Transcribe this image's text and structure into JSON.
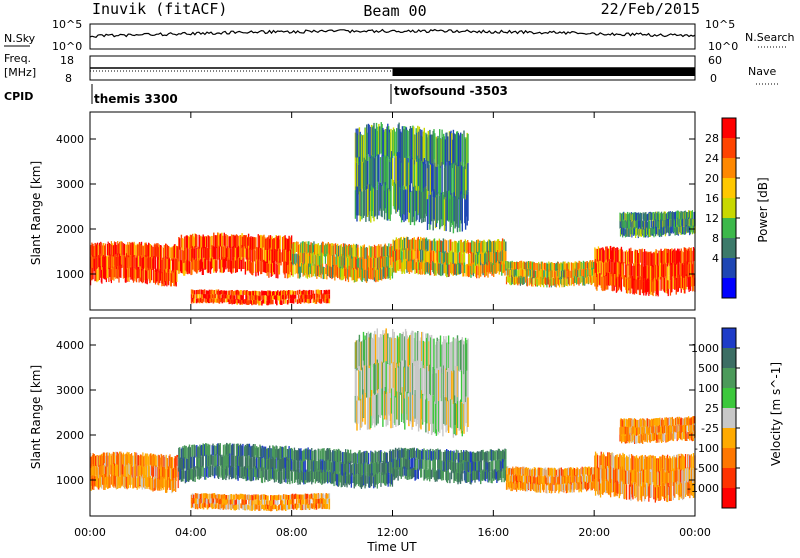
{
  "header": {
    "station": "Inuvik (fitACF)",
    "beam": "Beam 00",
    "date": "22/Feb/2015"
  },
  "noise_panel": {
    "left_label": "N.Sky",
    "left_ticks": [
      "10^5",
      "10^0"
    ],
    "right_label": "N.Search",
    "right_ticks": [
      "10^5",
      "10^0"
    ]
  },
  "freq_panel": {
    "left_label": "Freq.",
    "left_unit": "[MHz]",
    "left_ticks": [
      "18",
      "8"
    ],
    "right_label": "Nave",
    "right_ticks": [
      "60",
      "0"
    ]
  },
  "cpid": {
    "label": "CPID",
    "modes": [
      {
        "label": "themis 3300",
        "start_hour": 0
      },
      {
        "label": "twofsound -3503",
        "start_hour": 12
      }
    ]
  },
  "chart_data": [
    {
      "type": "heatmap",
      "title": "",
      "xlabel": "",
      "ylabel": "Slant Range [km]",
      "xlim": [
        0,
        24
      ],
      "ylim": [
        200,
        4600
      ],
      "xticks": [
        "00:00",
        "04:00",
        "08:00",
        "12:00",
        "16:00",
        "20:00",
        "00:00"
      ],
      "yticks": [
        1000,
        2000,
        3000,
        4000
      ],
      "colorbar": {
        "label": "Power [dB]",
        "ticks": [
          "28",
          "24",
          "20",
          "16",
          "12",
          "8",
          "4"
        ],
        "colors": [
          "#ff0000",
          "#ff4400",
          "#ff8800",
          "#ffc800",
          "#c8d800",
          "#3cb84a",
          "#3c7a6a",
          "#1e46b4",
          "#0000ff"
        ]
      },
      "bands": [
        {
          "t0": 0.0,
          "t1": 3.5,
          "r0": 700,
          "r1": 1700,
          "level": "high"
        },
        {
          "t0": 3.5,
          "t1": 8.0,
          "r0": 900,
          "r1": 1900,
          "level": "high"
        },
        {
          "t0": 4.0,
          "t1": 9.5,
          "r0": 300,
          "r1": 650,
          "level": "high"
        },
        {
          "t0": 8.0,
          "t1": 12.0,
          "r0": 800,
          "r1": 1700,
          "level": "mid"
        },
        {
          "t0": 12.0,
          "t1": 16.5,
          "r0": 900,
          "r1": 1800,
          "level": "mid"
        },
        {
          "t0": 10.5,
          "t1": 15.0,
          "r0": 1900,
          "r1": 4300,
          "level": "low"
        },
        {
          "t0": 16.5,
          "t1": 20.0,
          "r0": 700,
          "r1": 1300,
          "level": "mid"
        },
        {
          "t0": 20.0,
          "t1": 24.0,
          "r0": 500,
          "r1": 1600,
          "level": "high"
        },
        {
          "t0": 21.0,
          "t1": 24.0,
          "r0": 1800,
          "r1": 2400,
          "level": "low"
        }
      ]
    },
    {
      "type": "heatmap",
      "title": "",
      "xlabel": "Time UT",
      "ylabel": "Slant Range [km]",
      "xlim": [
        0,
        24
      ],
      "ylim": [
        200,
        4600
      ],
      "xticks": [
        "00:00",
        "04:00",
        "08:00",
        "12:00",
        "16:00",
        "20:00",
        "00:00"
      ],
      "yticks": [
        1000,
        2000,
        3000,
        4000
      ],
      "colorbar": {
        "label": "Velocity [m s^-1]",
        "ticks": [
          "1000",
          "500",
          "100",
          "25",
          "-25",
          "-100",
          "-500",
          "-1000"
        ],
        "colors": [
          "#1e3cc8",
          "#3c6e64",
          "#4b9a5a",
          "#3cc83c",
          "#c8c8c8",
          "#ffaa00",
          "#ff7700",
          "#ff3300",
          "#ff0000"
        ]
      },
      "bands": [
        {
          "t0": 0.0,
          "t1": 3.5,
          "r0": 700,
          "r1": 1600,
          "level": "neg"
        },
        {
          "t0": 3.5,
          "t1": 8.0,
          "r0": 900,
          "r1": 1800,
          "level": "pos"
        },
        {
          "t0": 4.0,
          "t1": 9.5,
          "r0": 300,
          "r1": 700,
          "level": "neg"
        },
        {
          "t0": 8.0,
          "t1": 12.0,
          "r0": 800,
          "r1": 1700,
          "level": "pos"
        },
        {
          "t0": 12.0,
          "t1": 16.5,
          "r0": 900,
          "r1": 1700,
          "level": "pos"
        },
        {
          "t0": 10.5,
          "t1": 15.0,
          "r0": 1900,
          "r1": 4300,
          "level": "zero"
        },
        {
          "t0": 16.5,
          "t1": 20.0,
          "r0": 700,
          "r1": 1300,
          "level": "neg"
        },
        {
          "t0": 20.0,
          "t1": 24.0,
          "r0": 500,
          "r1": 1600,
          "level": "neg"
        },
        {
          "t0": 21.0,
          "t1": 24.0,
          "r0": 1800,
          "r1": 2400,
          "level": "neg"
        }
      ]
    }
  ]
}
